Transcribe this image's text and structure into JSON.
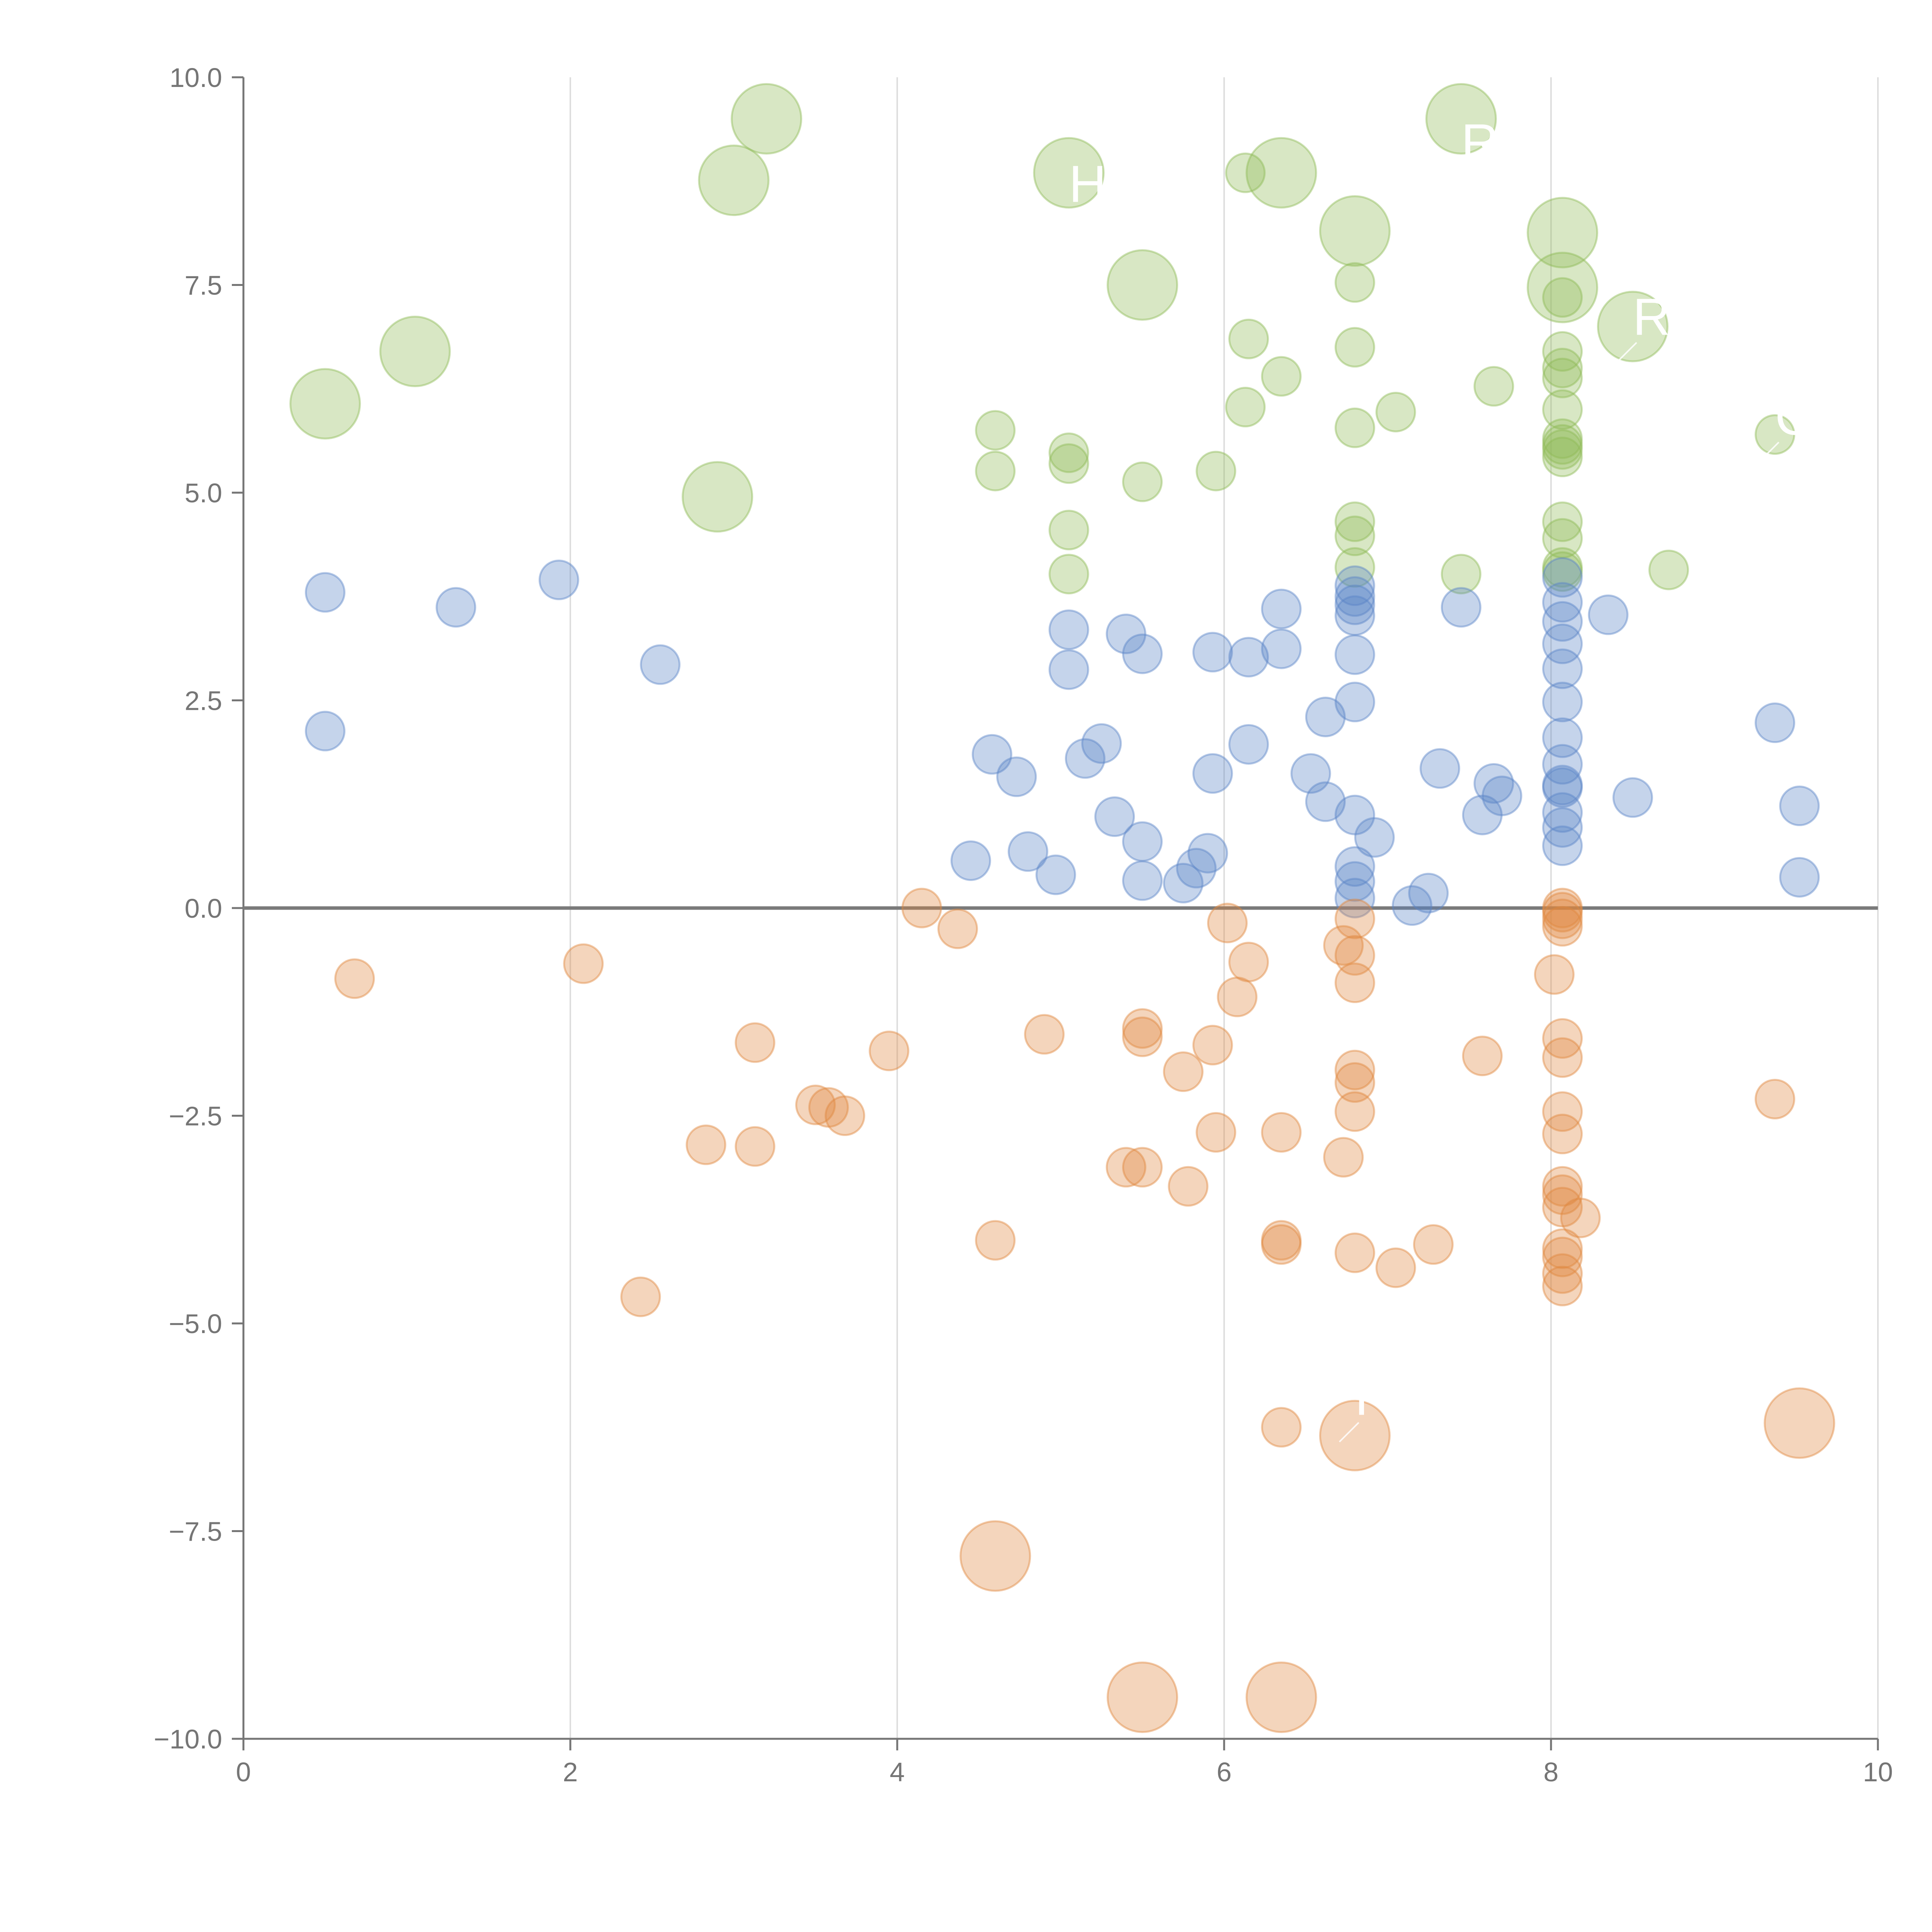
{
  "chart_data": {
    "type": "scatter",
    "subtype": "bubble",
    "title": "",
    "xlabel": "",
    "ylabel": "",
    "xlim": [
      0,
      10
    ],
    "ylim": [
      -10,
      10
    ],
    "x_ticks": [
      "0",
      "2",
      "4",
      "6",
      "8",
      "10"
    ],
    "x_tick_values": [
      0,
      2,
      4,
      6,
      8,
      10
    ],
    "y_ticks": [
      "10.0",
      "7.5",
      "5.0",
      "2.5",
      "0.0",
      "−2.5",
      "−5.0",
      "−7.5",
      "−10.0"
    ],
    "y_tick_values": [
      10,
      7.5,
      5,
      2.5,
      0,
      -2.5,
      -5,
      -7.5,
      -10
    ],
    "grid": "vertical",
    "reference_line_y": 0,
    "colors": {
      "green": "#8fba57",
      "blue": "#5a85c7",
      "orange": "#e0883f",
      "axis": "#757575",
      "grid": "#dedede"
    },
    "series": [
      {
        "name": "green",
        "color": "#8fba57",
        "points": [
          {
            "x": 0.5,
            "y": 6.07,
            "size": "large"
          },
          {
            "x": 1.05,
            "y": 6.7,
            "size": "large"
          },
          {
            "x": 2.9,
            "y": 4.95,
            "size": "large"
          },
          {
            "x": 3.0,
            "y": 8.76,
            "size": "large"
          },
          {
            "x": 3.2,
            "y": 9.5,
            "size": "large"
          },
          {
            "x": 5.05,
            "y": 8.85,
            "size": "large"
          },
          {
            "x": 5.5,
            "y": 7.5,
            "size": "large"
          },
          {
            "x": 6.35,
            "y": 8.85,
            "size": "large"
          },
          {
            "x": 6.8,
            "y": 8.15,
            "size": "large"
          },
          {
            "x": 7.45,
            "y": 9.5,
            "size": "large"
          },
          {
            "x": 8.07,
            "y": 8.13,
            "size": "large"
          },
          {
            "x": 8.07,
            "y": 7.47,
            "size": "large"
          },
          {
            "x": 8.5,
            "y": 7.0,
            "size": "large"
          },
          {
            "x": 4.6,
            "y": 5.75,
            "size": "small"
          },
          {
            "x": 4.6,
            "y": 5.26,
            "size": "small"
          },
          {
            "x": 5.05,
            "y": 5.48,
            "size": "small"
          },
          {
            "x": 5.05,
            "y": 5.35,
            "size": "small"
          },
          {
            "x": 5.05,
            "y": 4.55,
            "size": "small"
          },
          {
            "x": 5.05,
            "y": 4.02,
            "size": "small"
          },
          {
            "x": 5.5,
            "y": 5.13,
            "size": "small"
          },
          {
            "x": 5.95,
            "y": 5.26,
            "size": "small"
          },
          {
            "x": 6.13,
            "y": 8.85,
            "size": "small"
          },
          {
            "x": 6.15,
            "y": 6.85,
            "size": "small"
          },
          {
            "x": 6.13,
            "y": 6.03,
            "size": "small"
          },
          {
            "x": 6.35,
            "y": 6.4,
            "size": "small"
          },
          {
            "x": 6.8,
            "y": 7.53,
            "size": "small"
          },
          {
            "x": 6.8,
            "y": 6.75,
            "size": "small"
          },
          {
            "x": 6.8,
            "y": 5.78,
            "size": "small"
          },
          {
            "x": 6.8,
            "y": 4.65,
            "size": "small"
          },
          {
            "x": 6.8,
            "y": 4.48,
            "size": "small"
          },
          {
            "x": 6.8,
            "y": 4.1,
            "size": "small"
          },
          {
            "x": 7.05,
            "y": 5.97,
            "size": "small"
          },
          {
            "x": 7.45,
            "y": 4.02,
            "size": "small"
          },
          {
            "x": 7.65,
            "y": 6.28,
            "size": "small"
          },
          {
            "x": 8.07,
            "y": 7.35,
            "size": "small"
          },
          {
            "x": 8.07,
            "y": 6.7,
            "size": "small"
          },
          {
            "x": 8.07,
            "y": 6.5,
            "size": "small"
          },
          {
            "x": 8.07,
            "y": 6.38,
            "size": "small"
          },
          {
            "x": 8.07,
            "y": 6.0,
            "size": "small"
          },
          {
            "x": 8.07,
            "y": 5.65,
            "size": "small"
          },
          {
            "x": 8.07,
            "y": 5.58,
            "size": "small"
          },
          {
            "x": 8.07,
            "y": 5.52,
            "size": "small"
          },
          {
            "x": 8.07,
            "y": 5.43,
            "size": "small"
          },
          {
            "x": 8.07,
            "y": 4.65,
            "size": "small"
          },
          {
            "x": 8.07,
            "y": 4.45,
            "size": "small"
          },
          {
            "x": 8.07,
            "y": 4.1,
            "size": "small"
          },
          {
            "x": 8.07,
            "y": 4.05,
            "size": "small"
          },
          {
            "x": 8.72,
            "y": 4.07,
            "size": "small"
          },
          {
            "x": 9.37,
            "y": 5.7,
            "size": "small"
          }
        ]
      },
      {
        "name": "blue",
        "color": "#5a85c7",
        "points": [
          {
            "x": 0.5,
            "y": 3.8,
            "size": "small"
          },
          {
            "x": 0.5,
            "y": 2.13,
            "size": "small"
          },
          {
            "x": 1.3,
            "y": 3.62,
            "size": "small"
          },
          {
            "x": 1.93,
            "y": 3.95,
            "size": "small"
          },
          {
            "x": 2.55,
            "y": 2.93,
            "size": "small"
          },
          {
            "x": 4.45,
            "y": 0.57,
            "size": "small"
          },
          {
            "x": 4.58,
            "y": 1.85,
            "size": "small"
          },
          {
            "x": 4.73,
            "y": 1.58,
            "size": "small"
          },
          {
            "x": 4.8,
            "y": 0.68,
            "size": "small"
          },
          {
            "x": 4.97,
            "y": 0.4,
            "size": "small"
          },
          {
            "x": 5.05,
            "y": 3.35,
            "size": "small"
          },
          {
            "x": 5.05,
            "y": 2.87,
            "size": "small"
          },
          {
            "x": 5.15,
            "y": 1.8,
            "size": "small"
          },
          {
            "x": 5.25,
            "y": 1.98,
            "size": "small"
          },
          {
            "x": 5.33,
            "y": 1.1,
            "size": "small"
          },
          {
            "x": 5.4,
            "y": 3.3,
            "size": "small"
          },
          {
            "x": 5.5,
            "y": 3.06,
            "size": "small"
          },
          {
            "x": 5.5,
            "y": 0.8,
            "size": "small"
          },
          {
            "x": 5.5,
            "y": 0.33,
            "size": "small"
          },
          {
            "x": 5.75,
            "y": 0.3,
            "size": "small"
          },
          {
            "x": 5.83,
            "y": 0.48,
            "size": "small"
          },
          {
            "x": 5.9,
            "y": 0.66,
            "size": "small"
          },
          {
            "x": 5.93,
            "y": 3.08,
            "size": "small"
          },
          {
            "x": 5.93,
            "y": 1.62,
            "size": "small"
          },
          {
            "x": 6.15,
            "y": 3.02,
            "size": "small"
          },
          {
            "x": 6.15,
            "y": 1.97,
            "size": "small"
          },
          {
            "x": 6.35,
            "y": 3.6,
            "size": "small"
          },
          {
            "x": 6.35,
            "y": 3.12,
            "size": "small"
          },
          {
            "x": 6.53,
            "y": 1.62,
            "size": "small"
          },
          {
            "x": 6.62,
            "y": 2.3,
            "size": "small"
          },
          {
            "x": 6.62,
            "y": 1.28,
            "size": "small"
          },
          {
            "x": 6.8,
            "y": 3.88,
            "size": "small"
          },
          {
            "x": 6.8,
            "y": 3.75,
            "size": "small"
          },
          {
            "x": 6.8,
            "y": 3.65,
            "size": "small"
          },
          {
            "x": 6.8,
            "y": 3.52,
            "size": "small"
          },
          {
            "x": 6.8,
            "y": 3.05,
            "size": "small"
          },
          {
            "x": 6.8,
            "y": 2.48,
            "size": "small"
          },
          {
            "x": 6.8,
            "y": 1.12,
            "size": "small"
          },
          {
            "x": 6.8,
            "y": 0.5,
            "size": "small"
          },
          {
            "x": 6.8,
            "y": 0.32,
            "size": "small"
          },
          {
            "x": 6.8,
            "y": 0.12,
            "size": "small"
          },
          {
            "x": 6.92,
            "y": 0.85,
            "size": "small"
          },
          {
            "x": 7.15,
            "y": 0.03,
            "size": "small"
          },
          {
            "x": 7.25,
            "y": 0.18,
            "size": "small"
          },
          {
            "x": 7.32,
            "y": 1.68,
            "size": "small"
          },
          {
            "x": 7.45,
            "y": 3.62,
            "size": "small"
          },
          {
            "x": 7.58,
            "y": 1.12,
            "size": "small"
          },
          {
            "x": 7.65,
            "y": 1.5,
            "size": "small"
          },
          {
            "x": 7.7,
            "y": 1.35,
            "size": "small"
          },
          {
            "x": 8.07,
            "y": 3.98,
            "size": "small"
          },
          {
            "x": 8.07,
            "y": 3.68,
            "size": "small"
          },
          {
            "x": 8.07,
            "y": 3.45,
            "size": "small"
          },
          {
            "x": 8.07,
            "y": 3.18,
            "size": "small"
          },
          {
            "x": 8.07,
            "y": 2.88,
            "size": "small"
          },
          {
            "x": 8.07,
            "y": 2.48,
            "size": "small"
          },
          {
            "x": 8.07,
            "y": 2.05,
            "size": "small"
          },
          {
            "x": 8.07,
            "y": 1.73,
            "size": "small"
          },
          {
            "x": 8.07,
            "y": 1.48,
            "size": "small"
          },
          {
            "x": 8.07,
            "y": 1.45,
            "size": "small"
          },
          {
            "x": 8.07,
            "y": 1.15,
            "size": "small"
          },
          {
            "x": 8.07,
            "y": 0.97,
            "size": "small"
          },
          {
            "x": 8.07,
            "y": 0.75,
            "size": "small"
          },
          {
            "x": 8.35,
            "y": 3.53,
            "size": "small"
          },
          {
            "x": 8.5,
            "y": 1.33,
            "size": "small"
          },
          {
            "x": 9.37,
            "y": 2.23,
            "size": "small"
          },
          {
            "x": 9.52,
            "y": 1.23,
            "size": "small"
          },
          {
            "x": 9.52,
            "y": 0.37,
            "size": "small"
          }
        ]
      },
      {
        "name": "orange",
        "color": "#e0883f",
        "points": [
          {
            "x": 0.68,
            "y": -0.85,
            "size": "small"
          },
          {
            "x": 2.08,
            "y": -0.67,
            "size": "small"
          },
          {
            "x": 2.43,
            "y": -4.68,
            "size": "small"
          },
          {
            "x": 2.83,
            "y": -2.85,
            "size": "small"
          },
          {
            "x": 3.13,
            "y": -1.62,
            "size": "small"
          },
          {
            "x": 3.13,
            "y": -2.87,
            "size": "small"
          },
          {
            "x": 3.5,
            "y": -2.37,
            "size": "small"
          },
          {
            "x": 3.58,
            "y": -2.4,
            "size": "small"
          },
          {
            "x": 3.68,
            "y": -2.5,
            "size": "small"
          },
          {
            "x": 3.95,
            "y": -1.72,
            "size": "small"
          },
          {
            "x": 4.15,
            "y": 0.0,
            "size": "small"
          },
          {
            "x": 4.37,
            "y": -0.25,
            "size": "small"
          },
          {
            "x": 4.6,
            "y": -4.0,
            "size": "small"
          },
          {
            "x": 4.9,
            "y": -1.52,
            "size": "small"
          },
          {
            "x": 5.4,
            "y": -3.12,
            "size": "small"
          },
          {
            "x": 5.5,
            "y": -1.45,
            "size": "small"
          },
          {
            "x": 5.5,
            "y": -1.55,
            "size": "small"
          },
          {
            "x": 5.5,
            "y": -3.12,
            "size": "small"
          },
          {
            "x": 5.75,
            "y": -1.97,
            "size": "small"
          },
          {
            "x": 5.78,
            "y": -3.35,
            "size": "small"
          },
          {
            "x": 5.93,
            "y": -1.65,
            "size": "small"
          },
          {
            "x": 5.95,
            "y": -2.7,
            "size": "small"
          },
          {
            "x": 6.02,
            "y": -0.18,
            "size": "small"
          },
          {
            "x": 6.08,
            "y": -1.07,
            "size": "small"
          },
          {
            "x": 6.15,
            "y": -0.65,
            "size": "small"
          },
          {
            "x": 6.35,
            "y": -2.7,
            "size": "small"
          },
          {
            "x": 6.35,
            "y": -4.0,
            "size": "small"
          },
          {
            "x": 6.35,
            "y": -4.05,
            "size": "small"
          },
          {
            "x": 6.35,
            "y": -6.25,
            "size": "small"
          },
          {
            "x": 6.73,
            "y": -0.45,
            "size": "small"
          },
          {
            "x": 6.73,
            "y": -3.0,
            "size": "small"
          },
          {
            "x": 6.8,
            "y": -0.13,
            "size": "small"
          },
          {
            "x": 6.8,
            "y": -0.57,
            "size": "small"
          },
          {
            "x": 6.8,
            "y": -0.9,
            "size": "small"
          },
          {
            "x": 6.8,
            "y": -1.95,
            "size": "small"
          },
          {
            "x": 6.8,
            "y": -2.1,
            "size": "small"
          },
          {
            "x": 6.8,
            "y": -2.45,
            "size": "small"
          },
          {
            "x": 6.8,
            "y": -4.15,
            "size": "small"
          },
          {
            "x": 7.05,
            "y": -4.33,
            "size": "small"
          },
          {
            "x": 7.28,
            "y": -4.05,
            "size": "small"
          },
          {
            "x": 7.58,
            "y": -1.78,
            "size": "small"
          },
          {
            "x": 8.02,
            "y": -0.8,
            "size": "small"
          },
          {
            "x": 8.07,
            "y": 0.0,
            "size": "small"
          },
          {
            "x": 8.07,
            "y": -0.05,
            "size": "small"
          },
          {
            "x": 8.07,
            "y": -0.13,
            "size": "small"
          },
          {
            "x": 8.07,
            "y": -0.22,
            "size": "small"
          },
          {
            "x": 8.07,
            "y": -1.57,
            "size": "small"
          },
          {
            "x": 8.07,
            "y": -1.8,
            "size": "small"
          },
          {
            "x": 8.07,
            "y": -2.45,
            "size": "small"
          },
          {
            "x": 8.07,
            "y": -2.72,
            "size": "small"
          },
          {
            "x": 8.07,
            "y": -3.35,
            "size": "small"
          },
          {
            "x": 8.07,
            "y": -3.45,
            "size": "small"
          },
          {
            "x": 8.07,
            "y": -3.6,
            "size": "small"
          },
          {
            "x": 8.07,
            "y": -4.1,
            "size": "small"
          },
          {
            "x": 8.07,
            "y": -4.2,
            "size": "small"
          },
          {
            "x": 8.07,
            "y": -4.4,
            "size": "small"
          },
          {
            "x": 8.07,
            "y": -4.55,
            "size": "small"
          },
          {
            "x": 8.18,
            "y": -3.73,
            "size": "small"
          },
          {
            "x": 9.37,
            "y": -2.3,
            "size": "small"
          },
          {
            "x": 4.6,
            "y": -7.8,
            "size": "large"
          },
          {
            "x": 5.5,
            "y": -9.5,
            "size": "large"
          },
          {
            "x": 6.35,
            "y": -9.5,
            "size": "large"
          },
          {
            "x": 6.8,
            "y": -6.35,
            "size": "large"
          },
          {
            "x": 9.52,
            "y": -6.2,
            "size": "large"
          }
        ]
      }
    ],
    "annotations": [
      {
        "text": "H",
        "x": 5.05,
        "y": 8.5
      },
      {
        "text": "R",
        "x": 8.5,
        "y": 6.9
      },
      {
        "text": "R",
        "x": 6.8,
        "y": -6.1
      },
      {
        "text": "R",
        "x": 7.45,
        "y": 9.0
      },
      {
        "text": "C",
        "x": 9.37,
        "y": 5.7
      }
    ]
  }
}
